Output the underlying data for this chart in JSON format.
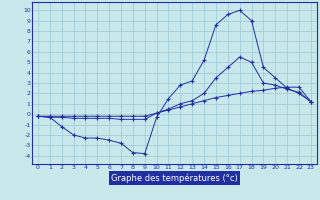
{
  "bg_color": "#c8e8ec",
  "grid_color": "#9cc8d4",
  "line_color": "#2030a0",
  "xlabel": "Graphe des températures (°c)",
  "xlim_min": -0.5,
  "xlim_max": 23.5,
  "ylim_min": -4.8,
  "ylim_max": 10.8,
  "yticks": [
    -4,
    -3,
    -2,
    -1,
    0,
    1,
    2,
    3,
    4,
    5,
    6,
    7,
    8,
    9,
    10
  ],
  "xticks": [
    0,
    1,
    2,
    3,
    4,
    5,
    6,
    7,
    8,
    9,
    10,
    11,
    12,
    13,
    14,
    15,
    16,
    17,
    18,
    19,
    20,
    21,
    22,
    23
  ],
  "line1_x": [
    0,
    1,
    2,
    3,
    4,
    5,
    6,
    7,
    8,
    9,
    10,
    11,
    12,
    13,
    14,
    15,
    16,
    17,
    18,
    19,
    20,
    21,
    22,
    23
  ],
  "line1_y": [
    -0.2,
    -0.3,
    -1.2,
    -2.0,
    -2.3,
    -2.3,
    -2.5,
    -2.8,
    -3.7,
    -3.8,
    -0.3,
    1.5,
    2.8,
    3.2,
    5.2,
    8.6,
    9.6,
    10.0,
    9.0,
    4.5,
    3.5,
    2.5,
    2.0,
    1.2
  ],
  "line2_x": [
    0,
    1,
    2,
    3,
    4,
    5,
    6,
    7,
    8,
    9,
    10,
    11,
    12,
    13,
    14,
    15,
    16,
    17,
    18,
    19,
    20,
    21,
    22,
    23
  ],
  "line2_y": [
    -0.2,
    -0.3,
    -0.3,
    -0.4,
    -0.4,
    -0.4,
    -0.4,
    -0.5,
    -0.5,
    -0.5,
    0.1,
    0.5,
    1.0,
    1.3,
    2.0,
    3.5,
    4.5,
    5.5,
    5.0,
    3.0,
    2.8,
    2.4,
    2.1,
    1.2
  ],
  "line3_x": [
    0,
    1,
    2,
    3,
    4,
    5,
    6,
    7,
    8,
    9,
    10,
    11,
    12,
    13,
    14,
    15,
    16,
    17,
    18,
    19,
    20,
    21,
    22,
    23
  ],
  "line3_y": [
    -0.2,
    -0.2,
    -0.2,
    -0.2,
    -0.2,
    -0.2,
    -0.2,
    -0.2,
    -0.2,
    -0.2,
    0.1,
    0.4,
    0.7,
    1.0,
    1.3,
    1.6,
    1.8,
    2.0,
    2.2,
    2.3,
    2.5,
    2.6,
    2.6,
    1.2
  ]
}
